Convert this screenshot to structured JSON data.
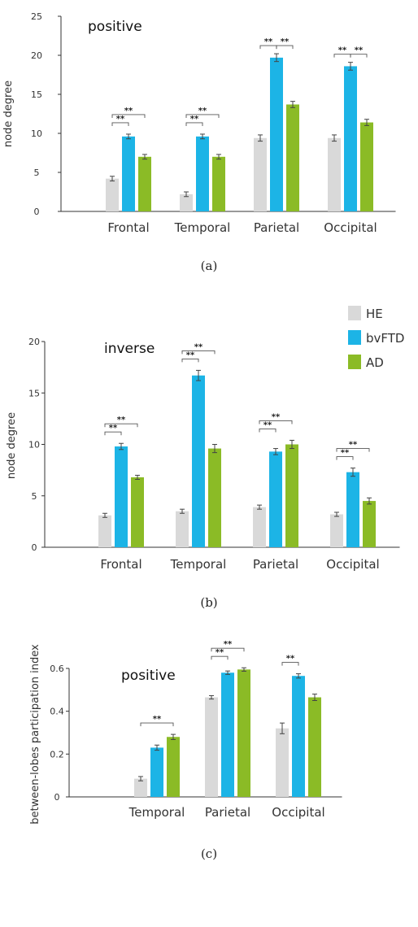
{
  "colors": {
    "HE": "#d9d9d9",
    "bvFTD": "#1cb4e6",
    "AD": "#8bbb26",
    "axis": "#333333",
    "bracket": "#555555"
  },
  "legend": [
    "HE",
    "bvFTD",
    "AD"
  ],
  "chart_data": [
    {
      "type": "bar",
      "panel_label": "(a)",
      "title": "positive",
      "xlabel": "",
      "ylabel": "node degree",
      "ylim": [
        0,
        25
      ],
      "yticks": [
        "0",
        "5",
        "10",
        "15",
        "20",
        "25"
      ],
      "categories": [
        "Frontal",
        "Temporal",
        "Parietal",
        "Occipital"
      ],
      "series": [
        {
          "name": "HE",
          "values": [
            4.2,
            2.2,
            9.4,
            9.4
          ],
          "errors": [
            0.3,
            0.3,
            0.4,
            0.4
          ]
        },
        {
          "name": "bvFTD",
          "values": [
            9.6,
            9.6,
            19.7,
            18.6
          ],
          "errors": [
            0.3,
            0.3,
            0.5,
            0.5
          ]
        },
        {
          "name": "AD",
          "values": [
            7.0,
            7.0,
            13.7,
            11.4
          ],
          "errors": [
            0.3,
            0.3,
            0.4,
            0.4
          ]
        }
      ],
      "significance": [
        {
          "category": "Frontal",
          "from": "HE",
          "to": "bvFTD",
          "level": 0,
          "label": "**"
        },
        {
          "category": "Frontal",
          "from": "HE",
          "to": "AD",
          "level": 1,
          "label": "**"
        },
        {
          "category": "Temporal",
          "from": "HE",
          "to": "bvFTD",
          "level": 0,
          "label": "**"
        },
        {
          "category": "Temporal",
          "from": "HE",
          "to": "AD",
          "level": 1,
          "label": "**"
        },
        {
          "category": "Parietal",
          "from": "HE",
          "to": "bvFTD",
          "level": 2,
          "label": "**"
        },
        {
          "category": "Parietal",
          "from": "bvFTD",
          "to": "AD",
          "level": 2,
          "label": "**"
        },
        {
          "category": "Occipital",
          "from": "HE",
          "to": "bvFTD",
          "level": 2,
          "label": "**"
        },
        {
          "category": "Occipital",
          "from": "bvFTD",
          "to": "AD",
          "level": 2,
          "label": "**"
        }
      ]
    },
    {
      "type": "bar",
      "panel_label": "(b)",
      "title": "inverse",
      "xlabel": "",
      "ylabel": "node degree",
      "ylim": [
        0,
        20
      ],
      "yticks": [
        "0",
        "5",
        "10",
        "15",
        "20"
      ],
      "categories": [
        "Frontal",
        "Temporal",
        "Parietal",
        "Occipital"
      ],
      "series": [
        {
          "name": "HE",
          "values": [
            3.1,
            3.5,
            3.9,
            3.2
          ],
          "errors": [
            0.2,
            0.2,
            0.2,
            0.2
          ]
        },
        {
          "name": "bvFTD",
          "values": [
            9.8,
            16.7,
            9.3,
            7.3
          ],
          "errors": [
            0.3,
            0.5,
            0.3,
            0.4
          ]
        },
        {
          "name": "AD",
          "values": [
            6.8,
            9.6,
            10.0,
            4.5
          ],
          "errors": [
            0.2,
            0.4,
            0.4,
            0.3
          ]
        }
      ],
      "significance": [
        {
          "category": "Frontal",
          "from": "HE",
          "to": "bvFTD",
          "level": 0,
          "label": "**"
        },
        {
          "category": "Frontal",
          "from": "HE",
          "to": "AD",
          "level": 1,
          "label": "**"
        },
        {
          "category": "Temporal",
          "from": "HE",
          "to": "bvFTD",
          "level": 0,
          "label": "**"
        },
        {
          "category": "Temporal",
          "from": "HE",
          "to": "AD",
          "level": 1,
          "label": "**"
        },
        {
          "category": "Parietal",
          "from": "HE",
          "to": "bvFTD",
          "level": 0,
          "label": "**"
        },
        {
          "category": "Parietal",
          "from": "HE",
          "to": "AD",
          "level": 1,
          "label": "**"
        },
        {
          "category": "Occipital",
          "from": "HE",
          "to": "bvFTD",
          "level": 0,
          "label": "**"
        },
        {
          "category": "Occipital",
          "from": "HE",
          "to": "AD",
          "level": 1,
          "label": "**"
        }
      ]
    },
    {
      "type": "bar",
      "panel_label": "(c)",
      "title": "positive",
      "xlabel": "",
      "ylabel": "between-lobes participation index",
      "ylim": [
        0,
        0.6
      ],
      "yticks": [
        "0",
        "0.2",
        "0.4",
        "0.6"
      ],
      "categories": [
        "Temporal",
        "Parietal",
        "Occipital"
      ],
      "series": [
        {
          "name": "HE",
          "values": [
            0.085,
            0.465,
            0.32
          ],
          "errors": [
            0.01,
            0.008,
            0.025
          ]
        },
        {
          "name": "bvFTD",
          "values": [
            0.23,
            0.58,
            0.565
          ],
          "errors": [
            0.012,
            0.008,
            0.01
          ]
        },
        {
          "name": "AD",
          "values": [
            0.28,
            0.595,
            0.465
          ],
          "errors": [
            0.012,
            0.008,
            0.015
          ]
        }
      ],
      "significance": [
        {
          "category": "Temporal",
          "from": "HE",
          "to": "AD",
          "level": 0,
          "label": "**"
        },
        {
          "category": "Parietal",
          "from": "HE",
          "to": "bvFTD",
          "level": 0,
          "label": "**"
        },
        {
          "category": "Parietal",
          "from": "HE",
          "to": "AD",
          "level": 1,
          "label": "**"
        },
        {
          "category": "Occipital",
          "from": "HE",
          "to": "bvFTD",
          "level": 0,
          "label": "**"
        }
      ]
    }
  ]
}
